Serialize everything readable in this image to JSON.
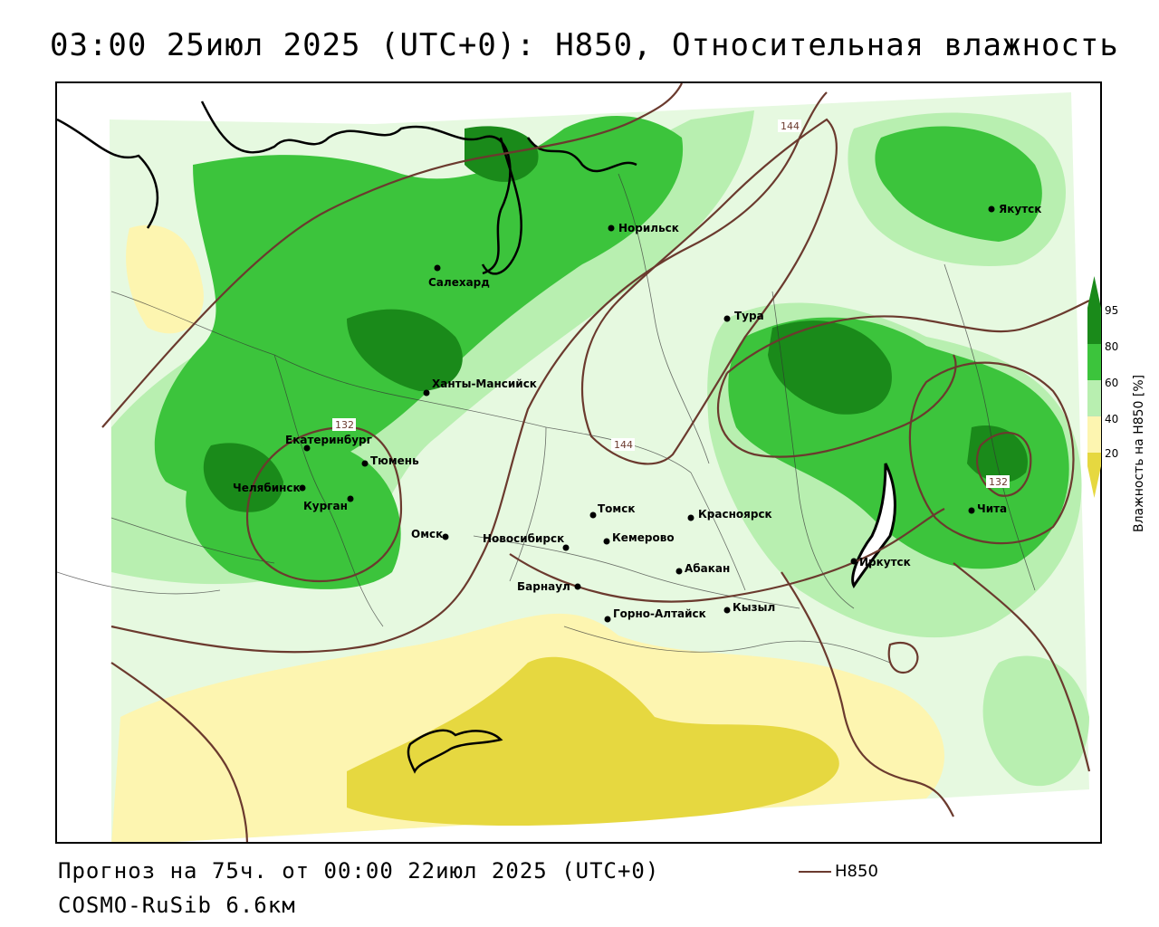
{
  "title": "03:00 25июл 2025 (UTC+0): H850, Относительная влажность",
  "forecast_line": "Прогноз на 75ч. от 00:00 22июл 2025 (UTC+0)",
  "model_line": "COSMO-RuSib 6.6км",
  "legend": {
    "line_label": "H850",
    "line_color": "#6b3a2e"
  },
  "colorbar": {
    "title": "Влажность на H850 [%]",
    "ticks": [
      "95",
      "80",
      "60",
      "40",
      "20"
    ],
    "colors": [
      "#1a8a1a",
      "#3cc43c",
      "#b8efb0",
      "#ffffff",
      "#fdf5b0",
      "#e6d840"
    ]
  },
  "contour_labels": [
    "144",
    "132",
    "144",
    "132"
  ],
  "cities": [
    {
      "name": "Якутск"
    },
    {
      "name": "Норильск"
    },
    {
      "name": "Салехард"
    },
    {
      "name": "Тура"
    },
    {
      "name": "Ханты-Мансийск"
    },
    {
      "name": "Екатеринбург"
    },
    {
      "name": "Тюмень"
    },
    {
      "name": "Челябинск"
    },
    {
      "name": "Курган"
    },
    {
      "name": "Омск"
    },
    {
      "name": "Новосибирск"
    },
    {
      "name": "Томск"
    },
    {
      "name": "Кемерово"
    },
    {
      "name": "Красноярск"
    },
    {
      "name": "Барнаул"
    },
    {
      "name": "Абакан"
    },
    {
      "name": "Горно-Алтайск"
    },
    {
      "name": "Кызыл"
    },
    {
      "name": "Иркутск"
    },
    {
      "name": "Чита"
    }
  ]
}
